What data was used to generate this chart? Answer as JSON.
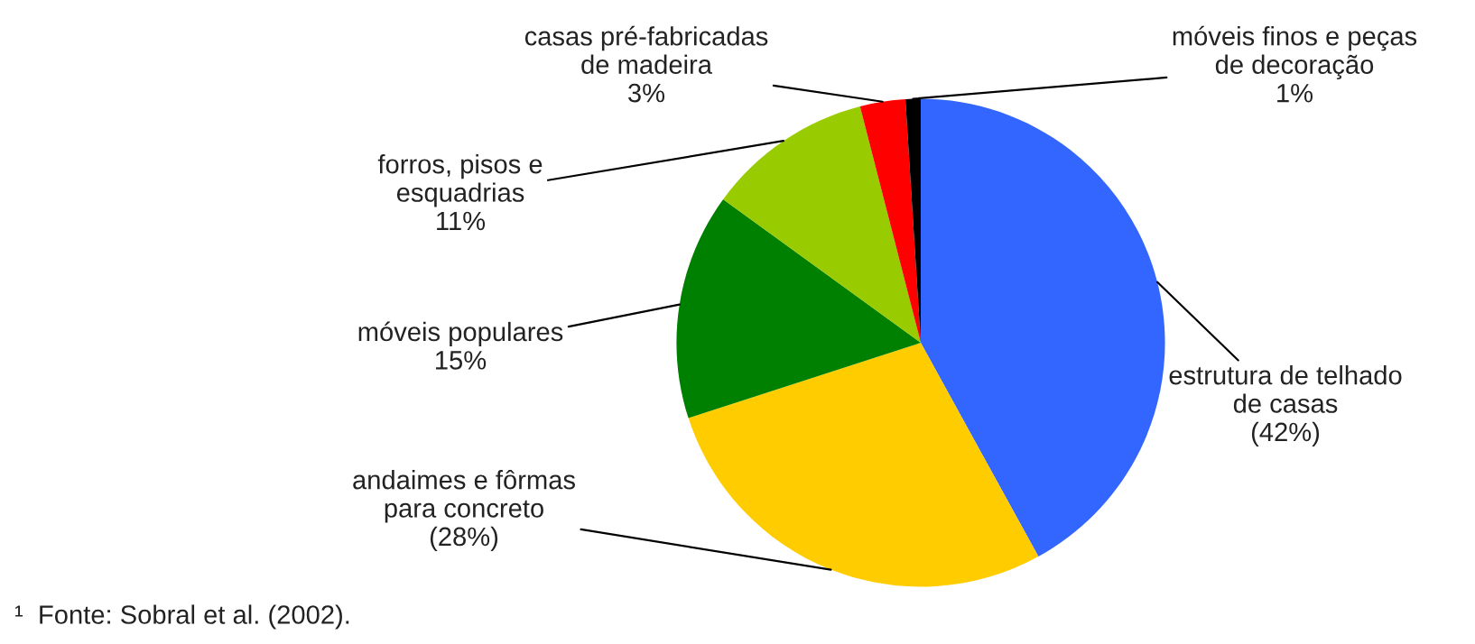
{
  "chart_data": {
    "type": "pie",
    "categories": [
      "estrutura de telhado\nde casas",
      "andaimes e fôrmas\npara concreto",
      "móveis populares",
      "forros, pisos e\nesquadrias",
      "casas pré-fabricadas\nde madeira",
      "móveis finos e peças\nde decoração"
    ],
    "values": [
      42,
      28,
      15,
      11,
      3,
      1
    ],
    "value_labels": [
      "(42%)",
      "(28%)",
      "15%",
      "11%",
      "3%",
      "1%"
    ],
    "colors": [
      "#3366ff",
      "#ffcc00",
      "#008000",
      "#99cc00",
      "#ff0000",
      "#000000"
    ],
    "annotations": [
      "¹  Fonte: Sobral et al. (2002)."
    ]
  }
}
